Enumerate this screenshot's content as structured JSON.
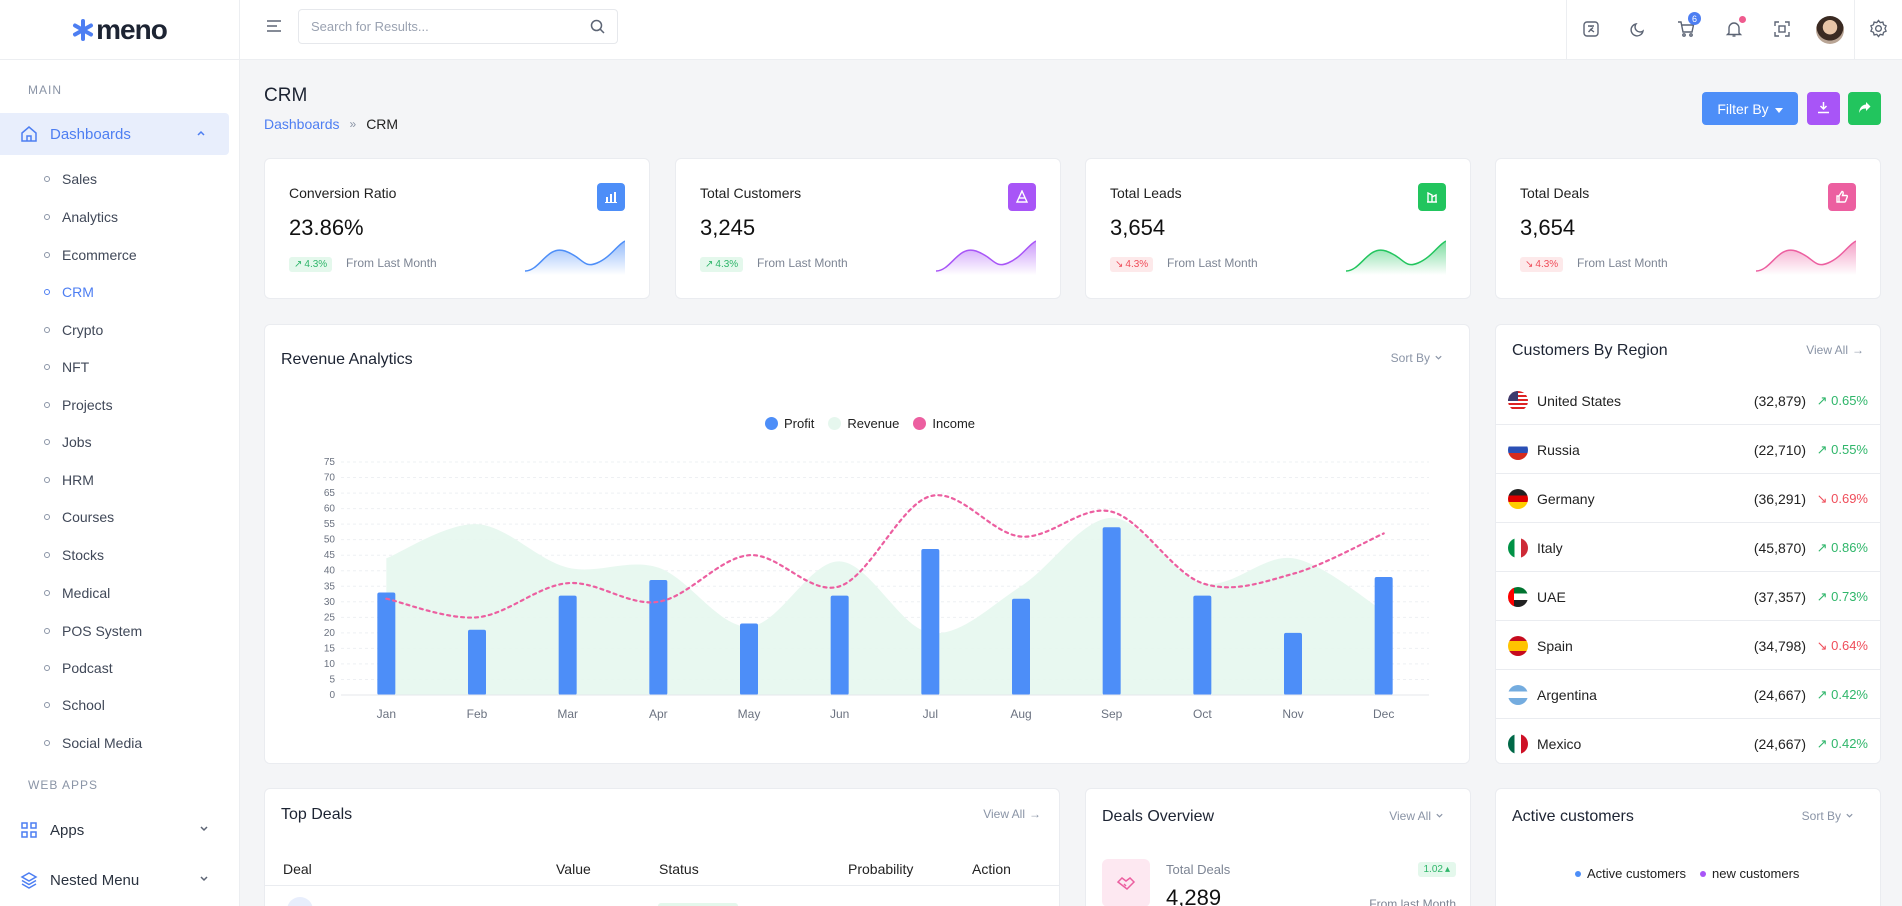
{
  "app": {
    "logo_text": "meno"
  },
  "sidebar": {
    "main_label": "MAIN",
    "dashboards_label": "Dashboards",
    "items": [
      {
        "label": "Sales"
      },
      {
        "label": "Analytics"
      },
      {
        "label": "Ecommerce"
      },
      {
        "label": "CRM"
      },
      {
        "label": "Crypto"
      },
      {
        "label": "NFT"
      },
      {
        "label": "Projects"
      },
      {
        "label": "Jobs"
      },
      {
        "label": "HRM"
      },
      {
        "label": "Courses"
      },
      {
        "label": "Stocks"
      },
      {
        "label": "Medical"
      },
      {
        "label": "POS System"
      },
      {
        "label": "Podcast"
      },
      {
        "label": "School"
      },
      {
        "label": "Social Media"
      }
    ],
    "active_item": "CRM",
    "webapps_label": "WEB APPS",
    "apps_label": "Apps",
    "nested_label": "Nested Menu"
  },
  "header": {
    "search_placeholder": "Search for Results...",
    "cart_count": "6"
  },
  "page": {
    "title": "CRM",
    "breadcrumb": [
      "Dashboards",
      "CRM"
    ],
    "filter_label": "Filter By"
  },
  "stats": [
    {
      "label": "Conversion Ratio",
      "value": "23.86%",
      "change": "4.3%",
      "trend": "up",
      "from": "From Last Month",
      "color": "#4d8ef8"
    },
    {
      "label": "Total Customers",
      "value": "3,245",
      "change": "4.3%",
      "trend": "up",
      "from": "From Last Month",
      "color": "#a855f7"
    },
    {
      "label": "Total Leads",
      "value": "3,654",
      "change": "4.3%",
      "trend": "down",
      "from": "From Last Month",
      "color": "#22c55e"
    },
    {
      "label": "Total Deals",
      "value": "3,654",
      "change": "4.3%",
      "trend": "down",
      "from": "From Last Month",
      "color": "#ec5fa0"
    }
  ],
  "revenue": {
    "title": "Revenue Analytics",
    "sort_label": "Sort By"
  },
  "chart_data": {
    "type": "bar",
    "categories": [
      "Jan",
      "Feb",
      "Mar",
      "Apr",
      "May",
      "Jun",
      "Jul",
      "Aug",
      "Sep",
      "Oct",
      "Nov",
      "Dec"
    ],
    "series": [
      {
        "name": "Profit",
        "type": "bar",
        "color": "#4d8ef8",
        "values": [
          33,
          21,
          32,
          37,
          23,
          32,
          47,
          31,
          54,
          32,
          20,
          38
        ]
      },
      {
        "name": "Revenue",
        "type": "area",
        "color": "#e6f7ee",
        "values": [
          44,
          55,
          41,
          41,
          22,
          43,
          20,
          35,
          57,
          36,
          44,
          27
        ]
      },
      {
        "name": "Income",
        "type": "line",
        "color": "#ec5fa0",
        "values": [
          31,
          25,
          36,
          30,
          45,
          35,
          64,
          51,
          59,
          36,
          39,
          52
        ]
      }
    ],
    "yticks": [
      0,
      5,
      10,
      15,
      20,
      25,
      30,
      35,
      40,
      45,
      50,
      55,
      60,
      65,
      70,
      75
    ],
    "ylim": [
      0,
      75
    ]
  },
  "regions": {
    "title": "Customers By Region",
    "view_all": "View All",
    "rows": [
      {
        "name": "United States",
        "count": "(32,879)",
        "pct": "0.65%",
        "trend": "up",
        "flag": "us"
      },
      {
        "name": "Russia",
        "count": "(22,710)",
        "pct": "0.55%",
        "trend": "up",
        "flag": "ru"
      },
      {
        "name": "Germany",
        "count": "(36,291)",
        "pct": "0.69%",
        "trend": "down",
        "flag": "de"
      },
      {
        "name": "Italy",
        "count": "(45,870)",
        "pct": "0.86%",
        "trend": "up",
        "flag": "it"
      },
      {
        "name": "UAE",
        "count": "(37,357)",
        "pct": "0.73%",
        "trend": "up",
        "flag": "ae"
      },
      {
        "name": "Spain",
        "count": "(34,798)",
        "pct": "0.64%",
        "trend": "down",
        "flag": "es"
      },
      {
        "name": "Argentina",
        "count": "(24,667)",
        "pct": "0.42%",
        "trend": "up",
        "flag": "ar"
      },
      {
        "name": "Mexico",
        "count": "(24,667)",
        "pct": "0.42%",
        "trend": "up",
        "flag": "mx"
      }
    ]
  },
  "top_deals": {
    "title": "Top Deals",
    "view_all": "View All",
    "columns": [
      "Deal",
      "Value",
      "Status",
      "Probability",
      "Action"
    ]
  },
  "deals_overview": {
    "title": "Deals Overview",
    "view_all": "View All",
    "total_label": "Total Deals",
    "total_value": "4,289",
    "badge": "1.02",
    "from": "From last Month"
  },
  "active_customers": {
    "title": "Active customers",
    "sort_label": "Sort By",
    "legend": [
      "Active customers",
      "new customers"
    ]
  }
}
